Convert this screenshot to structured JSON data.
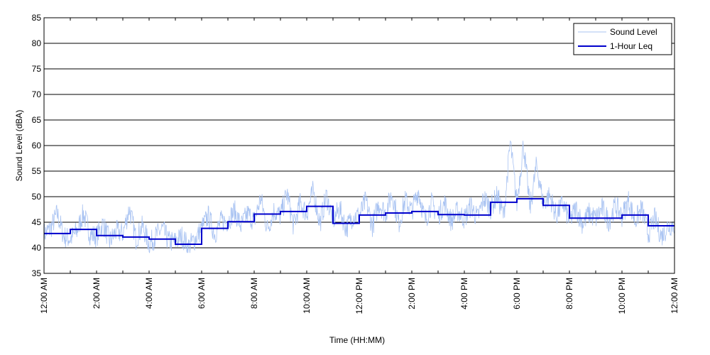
{
  "chart_data": {
    "type": "line",
    "title": "",
    "xlabel": "Time (HH:MM)",
    "ylabel": "Sound Level (dBA)",
    "xlim": [
      0,
      24
    ],
    "ylim": [
      35,
      85
    ],
    "x_unit": "hours",
    "yticks": [
      35,
      40,
      45,
      50,
      55,
      60,
      65,
      70,
      75,
      80,
      85
    ],
    "xticks": [
      {
        "value": 0,
        "label": "12:00 AM"
      },
      {
        "value": 2,
        "label": "2:00 AM"
      },
      {
        "value": 4,
        "label": "4:00 AM"
      },
      {
        "value": 6,
        "label": "6:00 AM"
      },
      {
        "value": 8,
        "label": "8:00 AM"
      },
      {
        "value": 10,
        "label": "10:00 AM"
      },
      {
        "value": 12,
        "label": "12:00 PM"
      },
      {
        "value": 14,
        "label": "2:00 PM"
      },
      {
        "value": 16,
        "label": "4:00 PM"
      },
      {
        "value": 18,
        "label": "6:00 PM"
      },
      {
        "value": 20,
        "label": "8:00 PM"
      },
      {
        "value": 22,
        "label": "10:00 PM"
      },
      {
        "value": 24,
        "label": "12:00 AM"
      }
    ],
    "grid": "horizontal",
    "legend": {
      "location": "top-right"
    },
    "series": [
      {
        "name": "Sound Level",
        "color": "#a9c3f2",
        "style": "thin-line",
        "x": [
          0.0,
          0.25,
          0.5,
          0.75,
          1.0,
          1.25,
          1.5,
          1.75,
          2.0,
          2.25,
          2.5,
          2.75,
          3.0,
          3.25,
          3.5,
          3.75,
          4.0,
          4.25,
          4.5,
          4.75,
          5.0,
          5.25,
          5.5,
          5.75,
          6.0,
          6.25,
          6.5,
          6.75,
          7.0,
          7.25,
          7.5,
          7.75,
          8.0,
          8.25,
          8.5,
          8.75,
          9.0,
          9.25,
          9.5,
          9.75,
          10.0,
          10.25,
          10.5,
          10.75,
          11.0,
          11.25,
          11.5,
          11.75,
          12.0,
          12.25,
          12.5,
          12.75,
          13.0,
          13.25,
          13.5,
          13.75,
          14.0,
          14.25,
          14.5,
          14.75,
          15.0,
          15.25,
          15.5,
          15.75,
          16.0,
          16.25,
          16.5,
          16.75,
          17.0,
          17.25,
          17.5,
          17.75,
          18.0,
          18.25,
          18.5,
          18.75,
          19.0,
          19.25,
          19.5,
          19.75,
          20.0,
          20.25,
          20.5,
          20.75,
          21.0,
          21.25,
          21.5,
          21.75,
          22.0,
          22.25,
          22.5,
          22.75,
          23.0,
          23.25,
          23.5,
          23.75,
          24.0
        ],
        "values": [
          42.5,
          43.5,
          46.5,
          42.0,
          41.5,
          43.0,
          46.5,
          42.5,
          42.0,
          44.5,
          41.0,
          43.0,
          42.5,
          47.5,
          41.5,
          44.0,
          40.5,
          42.0,
          43.5,
          41.0,
          41.0,
          42.0,
          40.0,
          41.5,
          43.5,
          46.0,
          42.5,
          45.0,
          45.0,
          47.0,
          44.0,
          46.5,
          45.0,
          49.5,
          43.5,
          47.0,
          46.0,
          50.5,
          44.0,
          48.5,
          46.5,
          51.0,
          44.5,
          50.0,
          45.0,
          47.5,
          43.5,
          46.0,
          46.0,
          49.0,
          44.0,
          48.5,
          46.5,
          50.5,
          44.5,
          49.0,
          47.0,
          51.0,
          45.0,
          48.5,
          46.0,
          48.5,
          45.0,
          47.0,
          45.5,
          48.0,
          45.5,
          49.5,
          47.5,
          50.0,
          46.0,
          60.5,
          48.5,
          60.0,
          47.5,
          56.0,
          48.5,
          50.0,
          46.0,
          48.5,
          45.0,
          47.5,
          44.5,
          46.5,
          45.5,
          47.5,
          45.0,
          48.0,
          46.0,
          49.0,
          45.0,
          47.5,
          42.5,
          45.5,
          42.0,
          44.0,
          44.5
        ]
      },
      {
        "name": "1-Hour Leq",
        "color": "#0000cc",
        "style": "step",
        "x": [
          0,
          1,
          2,
          3,
          4,
          5,
          6,
          7,
          8,
          9,
          10,
          11,
          12,
          13,
          14,
          15,
          16,
          17,
          18,
          19,
          20,
          21,
          22,
          23,
          24
        ],
        "values": [
          42.8,
          43.6,
          42.4,
          42.1,
          41.7,
          40.7,
          43.8,
          45.1,
          46.6,
          47.1,
          48.1,
          44.8,
          46.4,
          46.8,
          47.1,
          46.5,
          46.4,
          48.9,
          49.6,
          48.3,
          45.8,
          45.8,
          46.4,
          44.3,
          44.3
        ]
      }
    ]
  }
}
